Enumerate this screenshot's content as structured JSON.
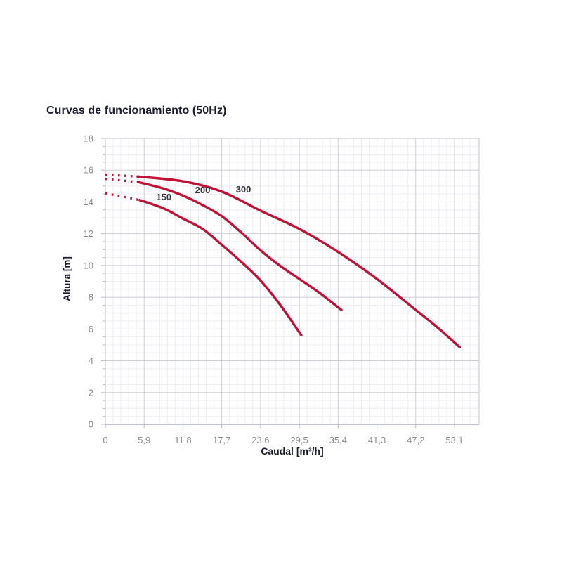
{
  "chart": {
    "title": "Curvas de funcionamiento (50Hz)",
    "x_axis_label": "Caudal [m³/h]",
    "y_axis_label": "Altura [m]"
  },
  "colors": {
    "curve_red": "#C11235",
    "grid_major": "#cdcfd8",
    "grid_minor": "#ededf2",
    "plot_border": "#c5c7d0",
    "axis_line": "#a8b0c6",
    "tick_mark": "#b9bcc8",
    "tick_text": "#8b8b8f",
    "heading_text": "#1b1b2e",
    "curve_label_text": "#33333c",
    "background": "#ffffff"
  },
  "chart_data": {
    "type": "line",
    "title": "Curvas de funcionamiento (50Hz)",
    "xlabel": "Caudal [m³/h]",
    "ylabel": "Altura [m]",
    "xlim": [
      0,
      56.84
    ],
    "ylim": [
      0,
      18
    ],
    "grid": {
      "major": true,
      "minor": true,
      "x_minor_step": 1.18,
      "y_minor_step": 0.5
    },
    "legend_position": "inline-curve-labels",
    "x_ticks": {
      "values": [
        0,
        5.9,
        11.8,
        17.7,
        23.6,
        29.5,
        35.4,
        41.3,
        47.2,
        53.1
      ],
      "labels": [
        "0",
        "5,9",
        "11,8",
        "17,7",
        "23,6",
        "29,5",
        "35,4",
        "41,3",
        "47,2",
        "53,1"
      ]
    },
    "y_ticks": {
      "values": [
        0,
        2,
        4,
        6,
        8,
        10,
        12,
        14,
        16,
        18
      ],
      "labels": [
        "0",
        "2",
        "4",
        "6",
        "8",
        "10",
        "12",
        "14",
        "16",
        "18"
      ]
    },
    "series": [
      {
        "name": "150",
        "label_pos": [
          8.9,
          14.3
        ],
        "dotted_lead": [
          [
            0,
            14.55
          ],
          [
            5.2,
            14.12
          ]
        ],
        "points": [
          [
            5.2,
            14.12
          ],
          [
            8.8,
            13.6
          ],
          [
            11.8,
            12.95
          ],
          [
            14.8,
            12.3
          ],
          [
            17.7,
            11.3
          ],
          [
            20.6,
            10.25
          ],
          [
            23.6,
            9.05
          ],
          [
            26.8,
            7.4
          ],
          [
            29.8,
            5.6
          ]
        ]
      },
      {
        "name": "200",
        "label_pos": [
          14.8,
          14.75
        ],
        "dotted_lead": [
          [
            0,
            15.45
          ],
          [
            5.0,
            15.25
          ]
        ],
        "points": [
          [
            5.0,
            15.25
          ],
          [
            8.8,
            14.85
          ],
          [
            11.8,
            14.4
          ],
          [
            14.8,
            13.8
          ],
          [
            17.7,
            13.1
          ],
          [
            20.6,
            12.1
          ],
          [
            23.6,
            10.95
          ],
          [
            26.5,
            10.0
          ],
          [
            29.5,
            9.15
          ],
          [
            32.5,
            8.3
          ],
          [
            35.9,
            7.2
          ]
        ]
      },
      {
        "name": "300",
        "label_pos": [
          21.0,
          14.8
        ],
        "dotted_lead": [
          [
            0,
            15.72
          ],
          [
            4.9,
            15.6
          ]
        ],
        "points": [
          [
            4.9,
            15.6
          ],
          [
            11.8,
            15.3
          ],
          [
            17.7,
            14.65
          ],
          [
            23.6,
            13.45
          ],
          [
            29.5,
            12.3
          ],
          [
            35.4,
            10.85
          ],
          [
            41.3,
            9.15
          ],
          [
            47.2,
            7.2
          ],
          [
            50.5,
            6.1
          ],
          [
            53.9,
            4.85
          ]
        ]
      }
    ]
  }
}
